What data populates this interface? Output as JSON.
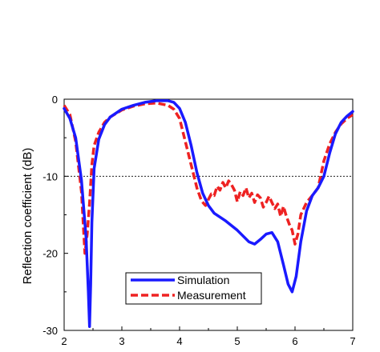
{
  "chart_data": {
    "type": "line",
    "ylabel": "Reflection coefficient (dB)",
    "xlabel": "",
    "xlim": [
      2,
      7
    ],
    "ylim": [
      -30,
      0
    ],
    "xticks": [
      2,
      3,
      4,
      5,
      6,
      7
    ],
    "yticks": [
      0,
      -10,
      -20,
      -30
    ],
    "xtick_labels": [
      "2",
      "3",
      "4",
      "5",
      "6",
      "7"
    ],
    "ytick_labels": [
      "0",
      "-10",
      "-20",
      "-30"
    ],
    "reference_line": -10,
    "grid": false,
    "legend_position": "bottom-center",
    "series": [
      {
        "name": "Simulation",
        "style": "solid",
        "color": "#1a1aff",
        "x": [
          2.0,
          2.1,
          2.2,
          2.3,
          2.38,
          2.42,
          2.44,
          2.46,
          2.48,
          2.52,
          2.6,
          2.7,
          2.8,
          3.0,
          3.2,
          3.4,
          3.6,
          3.8,
          3.9,
          4.0,
          4.1,
          4.2,
          4.3,
          4.4,
          4.5,
          4.6,
          4.8,
          5.0,
          5.2,
          5.3,
          5.4,
          5.5,
          5.6,
          5.7,
          5.8,
          5.88,
          5.95,
          6.02,
          6.1,
          6.2,
          6.3,
          6.4,
          6.5,
          6.6,
          6.7,
          6.8,
          6.9,
          7.0
        ],
        "values": [
          -1.2,
          -2.5,
          -5.0,
          -10.5,
          -18.0,
          -25.0,
          -29.5,
          -24.0,
          -16.0,
          -9.0,
          -5.2,
          -3.3,
          -2.3,
          -1.3,
          -0.8,
          -0.4,
          -0.2,
          -0.2,
          -0.4,
          -1.2,
          -3.0,
          -6.0,
          -9.5,
          -12.2,
          -13.8,
          -14.8,
          -15.8,
          -17.0,
          -18.5,
          -18.8,
          -18.2,
          -17.5,
          -17.3,
          -18.5,
          -21.5,
          -24.0,
          -25.0,
          -23.0,
          -18.5,
          -14.5,
          -12.5,
          -11.5,
          -10.0,
          -7.0,
          -4.5,
          -3.0,
          -2.2,
          -1.6
        ]
      },
      {
        "name": "Measurement",
        "style": "dashed",
        "color": "#ee2222",
        "x": [
          2.0,
          2.1,
          2.2,
          2.3,
          2.36,
          2.4,
          2.44,
          2.48,
          2.52,
          2.6,
          2.7,
          2.8,
          3.0,
          3.2,
          3.4,
          3.6,
          3.8,
          3.9,
          4.0,
          4.1,
          4.2,
          4.3,
          4.38,
          4.45,
          4.5,
          4.55,
          4.6,
          4.65,
          4.7,
          4.75,
          4.8,
          4.85,
          4.9,
          4.95,
          5.0,
          5.05,
          5.1,
          5.15,
          5.2,
          5.25,
          5.3,
          5.35,
          5.4,
          5.45,
          5.5,
          5.55,
          5.6,
          5.65,
          5.7,
          5.75,
          5.8,
          5.85,
          5.9,
          5.95,
          6.0,
          6.05,
          6.1,
          6.2,
          6.3,
          6.4,
          6.5,
          6.6,
          6.7,
          6.8,
          6.9,
          7.0
        ],
        "values": [
          -0.8,
          -2.0,
          -5.5,
          -12.0,
          -20.0,
          -17.5,
          -13.5,
          -8.5,
          -6.0,
          -4.3,
          -3.0,
          -2.3,
          -1.4,
          -0.9,
          -0.6,
          -0.5,
          -0.8,
          -1.3,
          -2.5,
          -5.5,
          -8.5,
          -11.5,
          -13.2,
          -13.8,
          -13.0,
          -12.3,
          -12.5,
          -11.3,
          -11.8,
          -10.8,
          -11.5,
          -10.6,
          -11.1,
          -11.8,
          -13.3,
          -12.0,
          -12.5,
          -11.5,
          -12.8,
          -12.2,
          -13.4,
          -12.4,
          -12.8,
          -14.0,
          -13.4,
          -12.6,
          -13.4,
          -14.2,
          -13.6,
          -15.2,
          -13.9,
          -15.2,
          -16.2,
          -17.0,
          -18.8,
          -17.5,
          -15.0,
          -13.4,
          -12.5,
          -11.5,
          -8.0,
          -5.8,
          -4.3,
          -3.2,
          -2.5,
          -2.0
        ]
      }
    ]
  }
}
